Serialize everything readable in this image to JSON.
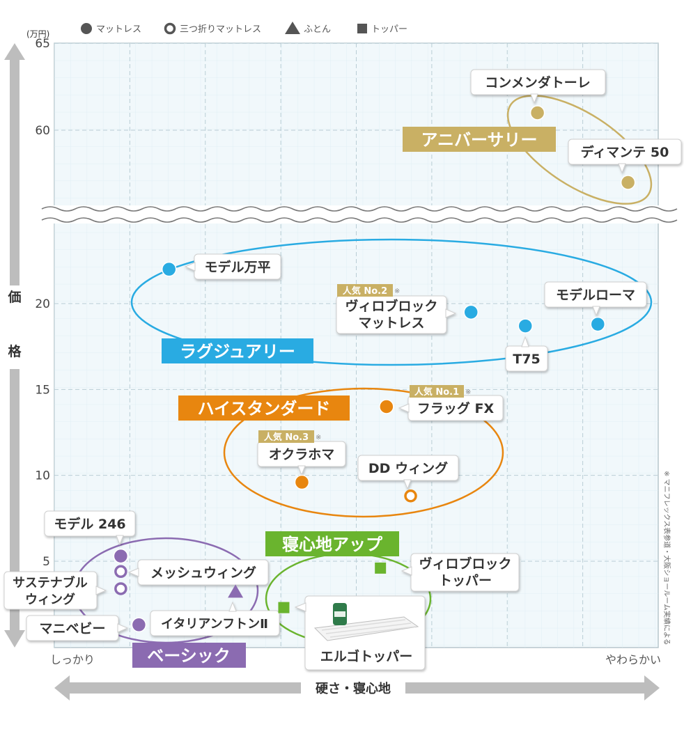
{
  "chart_data": {
    "type": "scatter",
    "title": "",
    "xlabel": "硬さ・寝心地",
    "ylabel": "価格",
    "y_unit": "(万円)",
    "x_min_label": "しっかり",
    "x_max_label": "やわらかい",
    "xlim": [
      0,
      100
    ],
    "ylim_lower": [
      0,
      25
    ],
    "ylim_upper": [
      55,
      65
    ],
    "yticks": [
      5,
      10,
      15,
      20,
      60,
      65
    ],
    "axis_break": "between 25 and 55",
    "grid": true,
    "legend_position": "top-left",
    "legend": [
      {
        "key": "mattress",
        "label": "マットレス",
        "marker": "filled-circle"
      },
      {
        "key": "trifold",
        "label": "三つ折りマットレス",
        "marker": "ring"
      },
      {
        "key": "futon",
        "label": "ふとん",
        "marker": "triangle"
      },
      {
        "key": "topper",
        "label": "トッパー",
        "marker": "square"
      }
    ],
    "groups": [
      {
        "name": "アニバーサリー",
        "color": "#c9b064"
      },
      {
        "name": "ラグジュアリー",
        "color": "#29abe2"
      },
      {
        "name": "ハイスタンダード",
        "color": "#e8860f"
      },
      {
        "name": "寝心地アップ",
        "color": "#6ab42e"
      },
      {
        "name": "ベーシック",
        "color": "#8b6bb1"
      }
    ],
    "points": [
      {
        "name": "コンメンダトーレ",
        "group": "アニバーサリー",
        "type": "mattress",
        "x": 80,
        "y": 61
      },
      {
        "name": "ディマンテ 50",
        "group": "アニバーサリー",
        "type": "mattress",
        "x": 95,
        "y": 57
      },
      {
        "name": "モデル万平",
        "group": "ラグジュアリー",
        "type": "mattress",
        "x": 19,
        "y": 22
      },
      {
        "name": "ヴィロブロック\nマットレス",
        "group": "ラグジュアリー",
        "type": "mattress",
        "x": 69,
        "y": 19.5,
        "badge": "人気 No.2"
      },
      {
        "name": "T75",
        "group": "ラグジュアリー",
        "type": "mattress",
        "x": 78,
        "y": 18.7
      },
      {
        "name": "モデルローマ",
        "group": "ラグジュアリー",
        "type": "mattress",
        "x": 90,
        "y": 18.8
      },
      {
        "name": "フラッグ FX",
        "group": "ハイスタンダード",
        "type": "mattress",
        "x": 55,
        "y": 14,
        "badge": "人気 No.1"
      },
      {
        "name": "オクラホマ",
        "group": "ハイスタンダード",
        "type": "mattress",
        "x": 41,
        "y": 9.6,
        "badge": "人気 No.3"
      },
      {
        "name": "DD ウィング",
        "group": "ハイスタンダード",
        "type": "trifold",
        "x": 59,
        "y": 8.8
      },
      {
        "name": "ヴィロブロック\nトッパー",
        "group": "寝心地アップ",
        "type": "topper",
        "x": 54,
        "y": 4.6
      },
      {
        "name": "エルゴトッパー",
        "group": "寝心地アップ",
        "type": "topper",
        "x": 38,
        "y": 2.3
      },
      {
        "name": "モデル 246",
        "group": "ベーシック",
        "type": "mattress",
        "x": 11,
        "y": 5.3
      },
      {
        "name": "メッシュウィング",
        "group": "ベーシック",
        "type": "trifold",
        "x": 11,
        "y": 4.4
      },
      {
        "name": "サステナブル\nウィング",
        "group": "ベーシック",
        "type": "trifold",
        "x": 11,
        "y": 3.4
      },
      {
        "name": "イタリアンフトンⅡ",
        "group": "ベーシック",
        "type": "futon",
        "x": 30,
        "y": 3.2
      },
      {
        "name": "マニベビー",
        "group": "ベーシック",
        "type": "mattress",
        "x": 14,
        "y": 1.3
      }
    ],
    "footnote": "※ マニフレックス表参道・大阪ショールーム実績による",
    "badge_note": "※"
  }
}
